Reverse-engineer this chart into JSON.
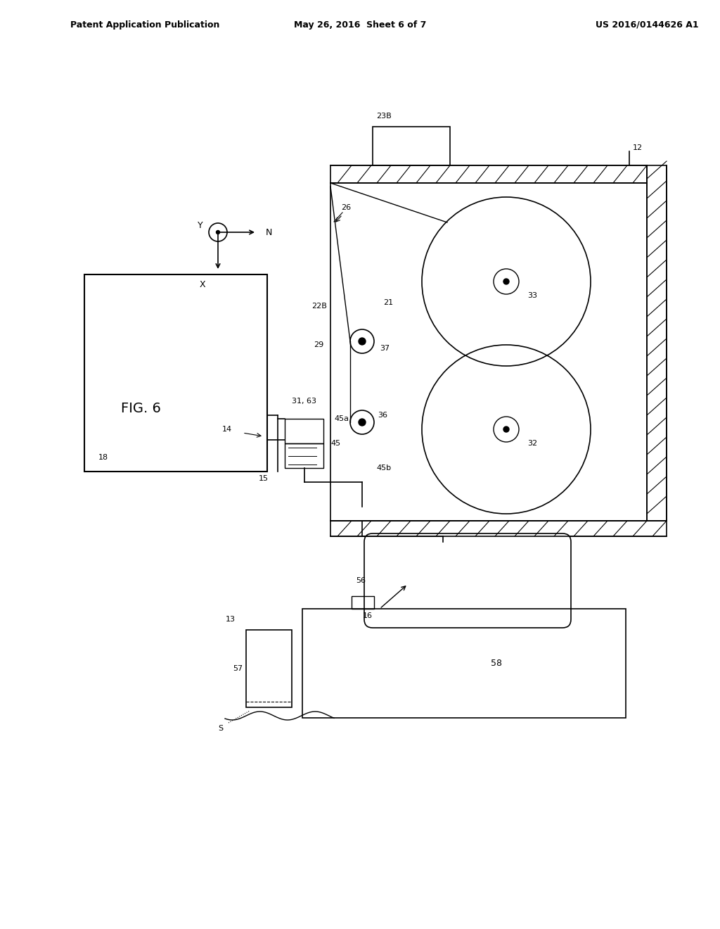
{
  "background_color": "#ffffff",
  "header_left": "Patent Application Publication",
  "header_mid": "May 26, 2016  Sheet 6 of 7",
  "header_right": "US 2016/0144626 A1",
  "fig_label": "FIG. 6",
  "line_color": "#000000",
  "hatch_color": "#000000",
  "fig_width": 10.24,
  "fig_height": 13.2
}
